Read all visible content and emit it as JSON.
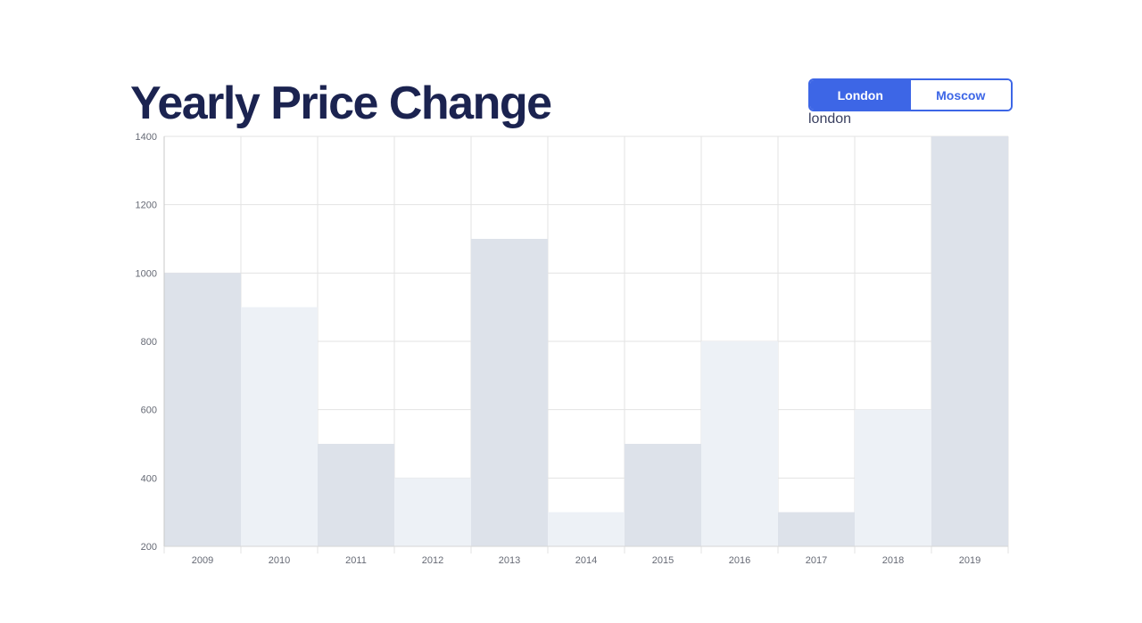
{
  "header": {
    "title": "Yearly Price Change"
  },
  "toggle": {
    "options": [
      {
        "label": "London",
        "active": true
      },
      {
        "label": "Moscow",
        "active": false
      }
    ],
    "selected_value": "london"
  },
  "colors": {
    "accent": "#3d66e6",
    "title": "#1b2350",
    "bar_dark": "#dde2ea",
    "bar_light": "#edf1f6",
    "grid": "#e3e3e3"
  },
  "chart_data": {
    "type": "bar",
    "categories": [
      "2009",
      "2010",
      "2011",
      "2012",
      "2013",
      "2014",
      "2015",
      "2016",
      "2017",
      "2018",
      "2019"
    ],
    "values": [
      1000,
      900,
      500,
      400,
      1100,
      300,
      500,
      800,
      300,
      600,
      1400
    ],
    "ylim": [
      200,
      1400
    ],
    "yticks": [
      200,
      400,
      600,
      800,
      1000,
      1200,
      1400
    ],
    "title": "Yearly Price Change",
    "xlabel": "",
    "ylabel": "",
    "grid": true,
    "bar_colors": [
      "#dde2ea",
      "#edf1f6",
      "#dde2ea",
      "#edf1f6",
      "#dde2ea",
      "#edf1f6",
      "#dde2ea",
      "#edf1f6",
      "#dde2ea",
      "#edf1f6",
      "#dde2ea"
    ]
  }
}
